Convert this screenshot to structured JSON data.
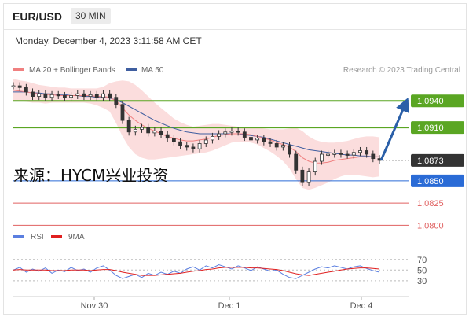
{
  "header": {
    "pair": "EUR/USD",
    "timeframe": "30 MIN",
    "datetime": "Monday, December 4, 2023 3:11:58 AM CET"
  },
  "colors": {
    "bollinger_band": "#fad7d7",
    "ma20": "#f08080",
    "ma50": "#3f5ea0",
    "resistance": "#5aa623",
    "support": "#2a6bd6",
    "red_level": "#e06060",
    "price": "#333333",
    "rsi": "#5b7fe0",
    "rsi_ma": "#e02020",
    "arrow": "#2a5fa8",
    "watermark": "#111111"
  },
  "chart_data": [
    {
      "type": "line",
      "title": "",
      "legend": [
        {
          "name": "MA 20 + Bollinger Bands",
          "color": "#f08080"
        },
        {
          "name": "MA 50",
          "color": "#3f5ea0"
        }
      ],
      "legend_position": "top-left",
      "credit": "Research © 2023 Trading Central",
      "watermark": "来源：HYCM兴业投资",
      "x_ticks": [
        "Nov 30",
        "Dec 1",
        "Dec 4"
      ],
      "ylim": [
        1.0795,
        1.0965
      ],
      "grid": false,
      "levels": [
        {
          "label": "1.0940",
          "value": 1.094,
          "kind": "resistance"
        },
        {
          "label": "1.0910",
          "value": 1.091,
          "kind": "resistance"
        },
        {
          "label": "1.0873",
          "value": 1.0873,
          "kind": "current"
        },
        {
          "label": "1.0850",
          "value": 1.085,
          "kind": "support"
        },
        {
          "label": "1.0825",
          "value": 1.0825,
          "kind": "minor"
        },
        {
          "label": "1.0800",
          "value": 1.08,
          "kind": "minor"
        }
      ],
      "price_series": [
        1.0957,
        1.0955,
        1.095,
        1.0945,
        1.0948,
        1.0944,
        1.0947,
        1.0946,
        1.0944,
        1.0946,
        1.0948,
        1.0945,
        1.0947,
        1.0944,
        1.0948,
        1.0944,
        1.0936,
        1.0918,
        1.0905,
        1.0908,
        1.091,
        1.0904,
        1.0906,
        1.0902,
        1.0898,
        1.0894,
        1.089,
        1.0888,
        1.0886,
        1.0892,
        1.0896,
        1.09,
        1.0903,
        1.0905,
        1.0906,
        1.0905,
        1.0899,
        1.0896,
        1.0898,
        1.0894,
        1.0892,
        1.0888,
        1.089,
        1.088,
        1.0862,
        1.0848,
        1.086,
        1.0872,
        1.088,
        1.088,
        1.0881,
        1.088,
        1.0879,
        1.0882,
        1.0884,
        1.088,
        1.0875,
        1.0873
      ],
      "ma20": [
        1.0952,
        1.0951,
        1.095,
        1.0949,
        1.0948,
        1.0947,
        1.0947,
        1.0946,
        1.0946,
        1.0946,
        1.0946,
        1.0946,
        1.0946,
        1.0945,
        1.0945,
        1.0944,
        1.094,
        1.0932,
        1.0924,
        1.0918,
        1.0913,
        1.0909,
        1.0906,
        1.0903,
        1.09,
        1.0898,
        1.0896,
        1.0895,
        1.0895,
        1.0896,
        1.0897,
        1.0899,
        1.0901,
        1.0902,
        1.0903,
        1.0903,
        1.0903,
        1.0902,
        1.09,
        1.0898,
        1.0896,
        1.0893,
        1.0891,
        1.0888,
        1.0883,
        1.0876,
        1.0872,
        1.087,
        1.087,
        1.0871,
        1.0873,
        1.0874,
        1.0875,
        1.0876,
        1.0877,
        1.0877,
        1.0877,
        1.0877
      ],
      "ma50": [
        1.095,
        1.095,
        1.095,
        1.0949,
        1.0949,
        1.0948,
        1.0948,
        1.0947,
        1.0947,
        1.0946,
        1.0946,
        1.0945,
        1.0945,
        1.0944,
        1.0944,
        1.0943,
        1.0941,
        1.0938,
        1.0934,
        1.093,
        1.0926,
        1.0922,
        1.0918,
        1.0915,
        1.0912,
        1.0909,
        1.0907,
        1.0905,
        1.0904,
        1.0903,
        1.0903,
        1.0903,
        1.0903,
        1.0903,
        1.0903,
        1.0903,
        1.0902,
        1.0901,
        1.09,
        1.0899,
        1.0897,
        1.0895,
        1.0893,
        1.0891,
        1.0889,
        1.0887,
        1.0885,
        1.0884,
        1.0883,
        1.0882,
        1.0881,
        1.088,
        1.0879,
        1.0879,
        1.0878,
        1.0878,
        1.0877,
        1.0877
      ],
      "bb_upper": [
        1.0965,
        1.0963,
        1.0962,
        1.096,
        1.0958,
        1.0957,
        1.0956,
        1.0955,
        1.0955,
        1.0954,
        1.0954,
        1.0954,
        1.0954,
        1.0954,
        1.0956,
        1.096,
        1.0962,
        1.0963,
        1.0962,
        1.0958,
        1.0952,
        1.0945,
        1.0938,
        1.0932,
        1.0926,
        1.092,
        1.0916,
        1.0913,
        1.0911,
        1.0912,
        1.0913,
        1.0914,
        1.0914,
        1.0913,
        1.0912,
        1.0911,
        1.0911,
        1.091,
        1.091,
        1.0909,
        1.0908,
        1.0908,
        1.0908,
        1.0909,
        1.091,
        1.0906,
        1.09,
        1.0896,
        1.0894,
        1.0893,
        1.0893,
        1.0894,
        1.0895,
        1.0897,
        1.0899,
        1.09,
        1.09,
        1.0899
      ],
      "bb_lower": [
        1.094,
        1.094,
        1.0939,
        1.0938,
        1.0938,
        1.0937,
        1.0938,
        1.0938,
        1.0938,
        1.0938,
        1.0938,
        1.0938,
        1.0937,
        1.0935,
        1.0932,
        1.0928,
        1.0915,
        1.09,
        1.0888,
        1.088,
        1.0876,
        1.0874,
        1.0874,
        1.0875,
        1.0876,
        1.0877,
        1.0878,
        1.0879,
        1.088,
        1.0881,
        1.0882,
        1.0884,
        1.0887,
        1.089,
        1.0893,
        1.0894,
        1.0894,
        1.0893,
        1.0891,
        1.0887,
        1.0883,
        1.0878,
        1.0872,
        1.0864,
        1.0852,
        1.0842,
        1.084,
        1.0842,
        1.0845,
        1.0848,
        1.0852,
        1.0855,
        1.0857,
        1.0857,
        1.0856,
        1.0855,
        1.0854,
        1.0855
      ],
      "projection": {
        "from": 1.0873,
        "to": 1.094
      }
    },
    {
      "type": "line",
      "legend": [
        {
          "name": "RSI",
          "color": "#5b7fe0"
        },
        {
          "name": "9MA",
          "color": "#e02020"
        }
      ],
      "legend_position": "top-left",
      "y_ticks": [
        70,
        50,
        30
      ],
      "ylim": [
        15,
        80
      ],
      "rsi": [
        50,
        55,
        46,
        52,
        48,
        54,
        44,
        50,
        47,
        55,
        49,
        52,
        46,
        54,
        58,
        50,
        40,
        34,
        38,
        42,
        36,
        44,
        40,
        46,
        42,
        48,
        44,
        52,
        56,
        50,
        58,
        54,
        60,
        56,
        52,
        58,
        54,
        49,
        56,
        52,
        48,
        50,
        42,
        36,
        34,
        40,
        46,
        52,
        56,
        54,
        58,
        55,
        52,
        56,
        58,
        53,
        49,
        46
      ],
      "rsi_ma": [
        50,
        51,
        50,
        50,
        50,
        50,
        49,
        49,
        49,
        50,
        50,
        50,
        49,
        50,
        51,
        51,
        49,
        46,
        44,
        42,
        40,
        40,
        40,
        41,
        42,
        43,
        44,
        46,
        48,
        49,
        51,
        52,
        54,
        55,
        55,
        55,
        55,
        54,
        54,
        53,
        52,
        51,
        49,
        46,
        43,
        41,
        40,
        42,
        44,
        46,
        48,
        50,
        52,
        53,
        54,
        54,
        53,
        52
      ]
    }
  ]
}
